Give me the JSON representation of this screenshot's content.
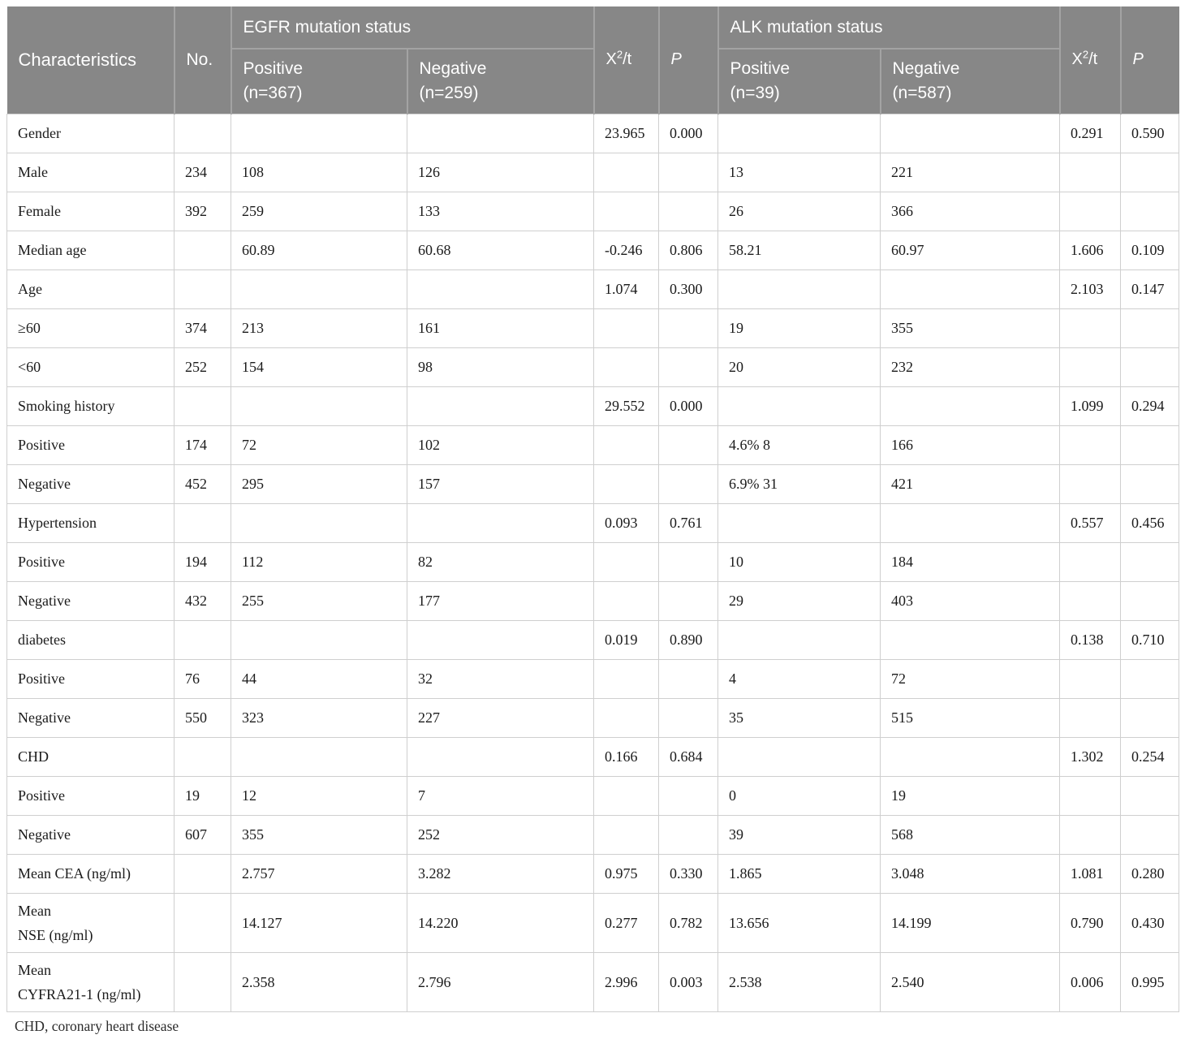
{
  "table": {
    "header": {
      "characteristics": "Characteristics",
      "no": "No.",
      "egfr_group": "EGFR mutation status",
      "alk_group": "ALK mutation status",
      "chi_base": "X",
      "chi_sup": "2",
      "chi_rest": "/t",
      "p": "P",
      "egfr_positive": "Positive\n(n=367)",
      "egfr_negative": "Negative\n(n=259)",
      "alk_positive": "Positive\n(n=39)",
      "alk_negative": "Negative\n(n=587)"
    },
    "columns": [
      "Characteristics",
      "No.",
      "EGFR Positive (n=367)",
      "EGFR Negative (n=259)",
      "X2/t",
      "P",
      "ALK Positive (n=39)",
      "ALK Negative (n=587)",
      "X2/t",
      "P"
    ],
    "rows": [
      [
        "Gender",
        "",
        "",
        "",
        "23.965",
        "0.000",
        "",
        "",
        "0.291",
        "0.590"
      ],
      [
        "Male",
        "234",
        "108",
        "126",
        "",
        "",
        "13",
        "221",
        "",
        ""
      ],
      [
        "Female",
        "392",
        "259",
        "133",
        "",
        "",
        "26",
        "366",
        "",
        ""
      ],
      [
        "Median age",
        "",
        "60.89",
        "60.68",
        "-0.246",
        "0.806",
        "58.21",
        "60.97",
        "1.606",
        "0.109"
      ],
      [
        "Age",
        "",
        "",
        "",
        "1.074",
        "0.300",
        "",
        "",
        "2.103",
        "0.147"
      ],
      [
        "≥60",
        "374",
        "213",
        "161",
        "",
        "",
        "19",
        "355",
        "",
        ""
      ],
      [
        "<60",
        "252",
        "154",
        "98",
        "",
        "",
        "20",
        "232",
        "",
        ""
      ],
      [
        "Smoking history",
        "",
        "",
        "",
        "29.552",
        "0.000",
        "",
        "",
        "1.099",
        "0.294"
      ],
      [
        "Positive",
        "174",
        "72",
        "102",
        "",
        "",
        "4.6% 8",
        "166",
        "",
        ""
      ],
      [
        "Negative",
        "452",
        "295",
        "157",
        "",
        "",
        "6.9% 31",
        "421",
        "",
        ""
      ],
      [
        "Hypertension",
        "",
        "",
        "",
        "0.093",
        "0.761",
        "",
        "",
        "0.557",
        "0.456"
      ],
      [
        "Positive",
        "194",
        "112",
        "82",
        "",
        "",
        "10",
        "184",
        "",
        ""
      ],
      [
        "Negative",
        "432",
        "255",
        "177",
        "",
        "",
        "29",
        "403",
        "",
        ""
      ],
      [
        "diabetes",
        "",
        "",
        "",
        "0.019",
        "0.890",
        "",
        "",
        "0.138",
        "0.710"
      ],
      [
        "Positive",
        "76",
        "44",
        "32",
        "",
        "",
        "4",
        "72",
        "",
        ""
      ],
      [
        "Negative",
        "550",
        "323",
        "227",
        "",
        "",
        "35",
        "515",
        "",
        ""
      ],
      [
        "CHD",
        "",
        "",
        "",
        "0.166",
        "0.684",
        "",
        "",
        "1.302",
        "0.254"
      ],
      [
        "Positive",
        "19",
        "12",
        "7",
        "",
        "",
        "0",
        "19",
        "",
        ""
      ],
      [
        "Negative",
        "607",
        "355",
        "252",
        "",
        "",
        "39",
        "568",
        "",
        ""
      ],
      [
        "Mean CEA (ng/ml)",
        "",
        "2.757",
        "3.282",
        "0.975",
        "0.330",
        "1.865",
        "3.048",
        "1.081",
        "0.280"
      ],
      [
        "Mean\nNSE (ng/ml)",
        "",
        "14.127",
        "14.220",
        "0.277",
        "0.782",
        "13.656",
        "14.199",
        "0.790",
        "0.430"
      ],
      [
        "Mean\nCYFRA21-1 (ng/ml)",
        "",
        "2.358",
        "2.796",
        "2.996",
        "0.003",
        "2.538",
        "2.540",
        "0.006",
        "0.995"
      ]
    ]
  },
  "footnote": "CHD, coronary heart disease",
  "colors": {
    "header_bg": "#878787",
    "header_divider": "#a3a3a3",
    "grid_line": "#cfcfcf",
    "header_text": "#ffffff",
    "body_text": "#1b1b1b"
  }
}
